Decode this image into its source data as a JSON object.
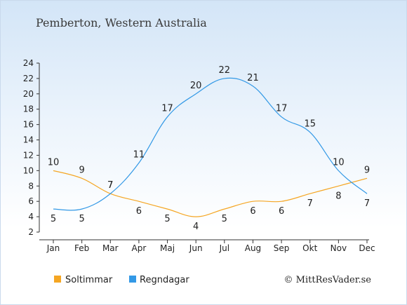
{
  "chart_data": {
    "type": "line",
    "title": "Pemberton, Western Australia",
    "categories": [
      "Jan",
      "Feb",
      "Mar",
      "Apr",
      "Maj",
      "Jun",
      "Jul",
      "Aug",
      "Sep",
      "Okt",
      "Nov",
      "Dec"
    ],
    "ylim": [
      2,
      24
    ],
    "yticks": [
      2,
      4,
      6,
      8,
      10,
      12,
      14,
      16,
      18,
      20,
      22,
      24
    ],
    "grid": false,
    "legend_position": "bottom-left",
    "series": [
      {
        "name": "Soltimmar",
        "color": "#f5a623",
        "values": [
          10,
          9,
          7,
          6,
          5,
          4,
          5,
          6,
          6,
          7,
          8,
          9
        ]
      },
      {
        "name": "Regndagar",
        "color": "#3399e6",
        "values": [
          5,
          5,
          7,
          11,
          17,
          20,
          22,
          21,
          17,
          15,
          10,
          7
        ]
      }
    ],
    "credit": "© MittResVader.se"
  }
}
